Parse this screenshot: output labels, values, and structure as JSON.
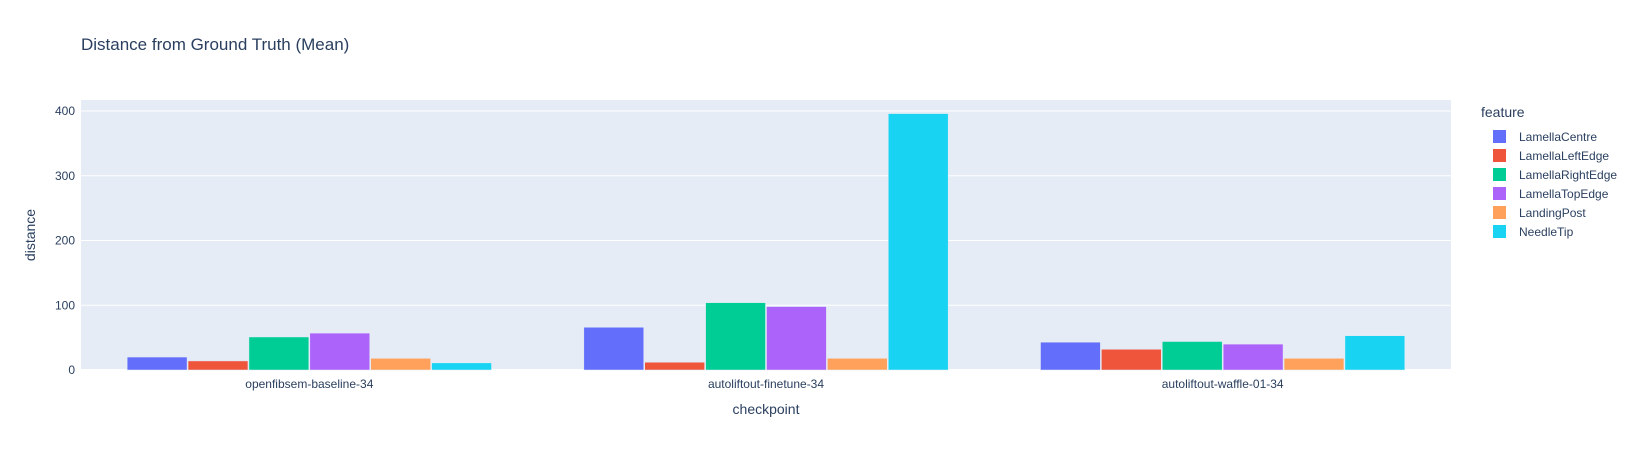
{
  "chart_data": {
    "type": "bar",
    "barmode": "group",
    "title": "Distance from Ground Truth (Mean)",
    "xlabel": "checkpoint",
    "ylabel": "distance",
    "categories": [
      "openfibsem-baseline-34",
      "autoliftout-finetune-34",
      "autoliftout-waffle-01-34"
    ],
    "ylim": [
      0,
      417
    ],
    "yticks": [
      0,
      100,
      200,
      300,
      400
    ],
    "grid": true,
    "plot_background": "#E5ECF6",
    "legend": {
      "title": "feature",
      "placement": "right"
    },
    "series": [
      {
        "name": "LamellaCentre",
        "color": "#636EFA",
        "values": [
          20,
          66,
          43
        ]
      },
      {
        "name": "LamellaLeftEdge",
        "color": "#EF553B",
        "values": [
          14,
          12,
          32
        ]
      },
      {
        "name": "LamellaRightEdge",
        "color": "#00CC96",
        "values": [
          51,
          104,
          44
        ]
      },
      {
        "name": "LamellaTopEdge",
        "color": "#AB63FA",
        "values": [
          57,
          98,
          40
        ]
      },
      {
        "name": "LandingPost",
        "color": "#FFA15A",
        "values": [
          18,
          18,
          18
        ]
      },
      {
        "name": "NeedleTip",
        "color": "#19D3F3",
        "values": [
          11,
          396,
          53
        ]
      }
    ]
  }
}
